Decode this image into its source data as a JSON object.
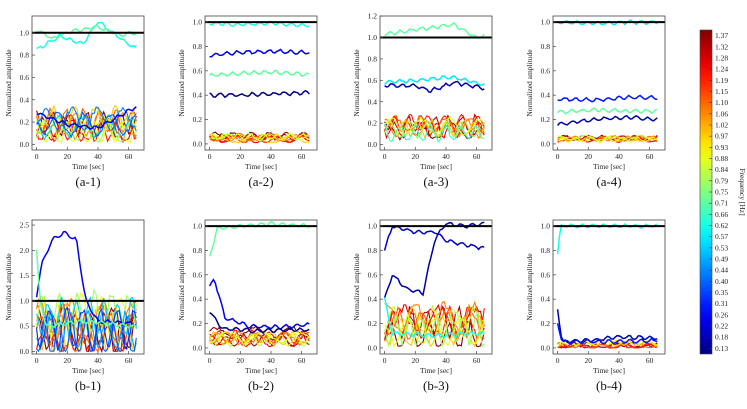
{
  "figure": {
    "colorbar": {
      "label": "Frequency [Hz]",
      "ticks": [
        "1.37",
        "1.32",
        "1.28",
        "1.24",
        "1.19",
        "1.15",
        "1.10",
        "1.06",
        "1.02",
        "0.97",
        "0.93",
        "0.88",
        "0.84",
        "0.79",
        "0.75",
        "0.71",
        "0.66",
        "0.62",
        "0.57",
        "0.53",
        "0.49",
        "0.44",
        "0.40",
        "0.35",
        "0.31",
        "0.26",
        "0.22",
        "0.18",
        "0.13"
      ]
    }
  },
  "chart_data": [
    {
      "id": "a-1",
      "caption": "(a-1)",
      "type": "line",
      "xlabel": "Time [sec]",
      "ylabel": "Normalized amplitude",
      "xlim": [
        -3,
        70
      ],
      "ylim": [
        -0.05,
        1.15
      ],
      "xticks": [
        "0",
        "20",
        "40",
        "60"
      ],
      "yticks": [
        "0.0",
        "0.2",
        "0.4",
        "0.6",
        "0.8",
        "1.0"
      ],
      "reference_line": 1.0,
      "series": [
        {
          "name": "0.62 Hz",
          "level": 0.62,
          "start": 0.85,
          "points": [
            [
              15,
              0.97
            ],
            [
              30,
              0.9
            ],
            [
              40,
              1.1
            ],
            [
              50,
              1.0
            ],
            [
              64,
              0.86
            ]
          ]
        },
        {
          "name": "0.71 Hz",
          "level": 0.71,
          "start": 1.03,
          "points": [
            [
              10,
              0.95
            ],
            [
              25,
              1.02
            ],
            [
              40,
              1.05
            ],
            [
              55,
              0.98
            ],
            [
              64,
              1.0
            ]
          ]
        },
        {
          "name": "0.26 Hz",
          "level": 0.26,
          "start": 0.28,
          "points": [
            [
              20,
              0.18
            ],
            [
              40,
              0.15
            ],
            [
              64,
              0.33
            ]
          ]
        }
      ],
      "cluster": {
        "band": [
          0.02,
          0.28
        ],
        "levels": [
          1.37,
          1.32,
          1.24,
          1.19,
          1.1,
          1.06,
          0.97,
          0.88,
          0.79,
          0.84,
          0.53,
          0.44,
          0.4
        ]
      }
    },
    {
      "id": "a-2",
      "caption": "(a-2)",
      "type": "line",
      "xlabel": "Time [sec]",
      "ylabel": "Normalized amplitude",
      "xlim": [
        -3,
        70
      ],
      "ylim": [
        -0.05,
        1.05
      ],
      "xticks": [
        "0",
        "20",
        "40",
        "60"
      ],
      "yticks": [
        "0.0",
        "0.2",
        "0.4",
        "0.6",
        "0.8",
        "1.0"
      ],
      "reference_line": 1.0,
      "series": [
        {
          "name": "0.62 Hz",
          "level": 0.62,
          "start": 0.99,
          "points": [
            [
              20,
              0.98
            ],
            [
              40,
              0.99
            ],
            [
              64,
              0.97
            ]
          ]
        },
        {
          "name": "0.26 Hz",
          "level": 0.26,
          "start": 0.73,
          "points": [
            [
              20,
              0.75
            ],
            [
              40,
              0.76
            ],
            [
              64,
              0.75
            ]
          ]
        },
        {
          "name": "0.71 Hz",
          "level": 0.71,
          "start": 0.56,
          "points": [
            [
              20,
              0.58
            ],
            [
              40,
              0.59
            ],
            [
              64,
              0.57
            ]
          ]
        },
        {
          "name": "0.13 Hz",
          "level": 0.13,
          "start": 0.4,
          "points": [
            [
              20,
              0.4
            ],
            [
              40,
              0.41
            ],
            [
              64,
              0.42
            ]
          ]
        }
      ],
      "cluster": {
        "band": [
          0.01,
          0.08
        ],
        "levels": [
          1.37,
          1.32,
          1.24,
          1.19,
          1.1,
          1.06,
          0.97,
          0.88,
          0.84
        ]
      }
    },
    {
      "id": "a-3",
      "caption": "(a-3)",
      "type": "line",
      "xlabel": "Time [sec]",
      "ylabel": "Normalized amplitude",
      "xlim": [
        -3,
        70
      ],
      "ylim": [
        -0.05,
        1.2
      ],
      "xticks": [
        "0",
        "20",
        "40",
        "60"
      ],
      "yticks": [
        "0.0",
        "0.2",
        "0.4",
        "0.6",
        "0.8",
        "1.0",
        "1.2"
      ],
      "reference_line": 1.0,
      "series": [
        {
          "name": "0.71 Hz",
          "level": 0.71,
          "start": 1.03,
          "points": [
            [
              20,
              1.07
            ],
            [
              45,
              1.12
            ],
            [
              60,
              1.0
            ],
            [
              64,
              1.02
            ]
          ]
        },
        {
          "name": "0.57 Hz",
          "level": 0.57,
          "start": 0.58,
          "points": [
            [
              20,
              0.6
            ],
            [
              45,
              0.63
            ],
            [
              64,
              0.56
            ]
          ]
        },
        {
          "name": "0.18 Hz",
          "level": 0.18,
          "start": 0.55,
          "points": [
            [
              20,
              0.55
            ],
            [
              30,
              0.5
            ],
            [
              45,
              0.58
            ],
            [
              64,
              0.53
            ]
          ]
        }
      ],
      "cluster": {
        "band": [
          0.03,
          0.23
        ],
        "levels": [
          1.37,
          1.32,
          1.24,
          1.19,
          1.1,
          1.06,
          0.97,
          0.88,
          0.79,
          0.66
        ]
      }
    },
    {
      "id": "a-4",
      "caption": "(a-4)",
      "type": "line",
      "xlabel": "Time [sec]",
      "ylabel": "Normalized amplitude",
      "xlim": [
        -3,
        70
      ],
      "ylim": [
        -0.05,
        1.05
      ],
      "xticks": [
        "0",
        "20",
        "40",
        "60"
      ],
      "yticks": [
        "0.0",
        "0.2",
        "0.4",
        "0.6",
        "0.8",
        "1.0"
      ],
      "reference_line": 1.0,
      "series": [
        {
          "name": "0.57 Hz",
          "level": 0.57,
          "start": 1.0,
          "points": [
            [
              25,
              0.99
            ],
            [
              45,
              1.0
            ],
            [
              64,
              1.0
            ]
          ]
        },
        {
          "name": "0.31 Hz",
          "level": 0.31,
          "start": 0.37,
          "points": [
            [
              25,
              0.36
            ],
            [
              45,
              0.38
            ],
            [
              64,
              0.38
            ]
          ]
        },
        {
          "name": "0.71 Hz",
          "level": 0.71,
          "start": 0.26,
          "points": [
            [
              25,
              0.28
            ],
            [
              45,
              0.27
            ],
            [
              64,
              0.27
            ]
          ]
        },
        {
          "name": "0.18 Hz",
          "level": 0.18,
          "start": 0.16,
          "points": [
            [
              25,
              0.2
            ],
            [
              45,
              0.22
            ],
            [
              64,
              0.2
            ]
          ]
        }
      ],
      "cluster": {
        "band": [
          0.01,
          0.06
        ],
        "levels": [
          1.37,
          1.32,
          1.24,
          1.15,
          1.06,
          0.97,
          0.88,
          0.84
        ]
      }
    },
    {
      "id": "b-1",
      "caption": "(b-1)",
      "type": "line",
      "xlabel": "Time [sec]",
      "ylabel": "Normalized amplitude",
      "xlim": [
        -3,
        70
      ],
      "ylim": [
        -0.05,
        2.6
      ],
      "xticks": [
        "0",
        "20",
        "40",
        "60"
      ],
      "yticks": [
        "0.0",
        "0.5",
        "1.0",
        "1.5",
        "2.0",
        "2.5"
      ],
      "reference_line": 1.0,
      "series": [
        {
          "name": "0.26 Hz",
          "level": 0.26,
          "start": 1.1,
          "points": [
            [
              3,
              1.7
            ],
            [
              10,
              2.2
            ],
            [
              18,
              2.35
            ],
            [
              26,
              2.2
            ],
            [
              32,
              1.0
            ],
            [
              40,
              0.6
            ],
            [
              64,
              0.55
            ]
          ]
        },
        {
          "name": "0.71 Hz",
          "level": 0.71,
          "start": 2.0,
          "points": [
            [
              2,
              1.1
            ],
            [
              6,
              0.5
            ],
            [
              30,
              0.6
            ],
            [
              64,
              0.5
            ]
          ]
        }
      ],
      "cluster": {
        "band": [
          0.0,
          1.0
        ],
        "levels": [
          1.37,
          1.32,
          1.24,
          1.19,
          1.1,
          1.06,
          0.97,
          0.88,
          0.79,
          0.53,
          0.49,
          0.4,
          0.35
        ]
      }
    },
    {
      "id": "b-2",
      "caption": "(b-2)",
      "type": "line",
      "xlabel": "Time [sec]",
      "ylabel": "Normalized amplitude",
      "xlim": [
        -3,
        70
      ],
      "ylim": [
        -0.05,
        1.05
      ],
      "xticks": [
        "0",
        "20",
        "40",
        "60"
      ],
      "yticks": [
        "0.0",
        "0.2",
        "0.4",
        "0.6",
        "0.8",
        "1.0"
      ],
      "reference_line": 1.0,
      "series": [
        {
          "name": "0.71 Hz",
          "level": 0.71,
          "start": 0.75,
          "points": [
            [
              5,
              0.98
            ],
            [
              20,
              1.0
            ],
            [
              40,
              1.02
            ],
            [
              64,
              1.0
            ]
          ]
        },
        {
          "name": "0.26 Hz",
          "level": 0.26,
          "start": 0.5,
          "points": [
            [
              3,
              0.57
            ],
            [
              10,
              0.25
            ],
            [
              25,
              0.18
            ],
            [
              45,
              0.17
            ],
            [
              64,
              0.19
            ]
          ]
        },
        {
          "name": "0.13 Hz",
          "level": 0.13,
          "start": 0.3,
          "points": [
            [
              8,
              0.16
            ],
            [
              30,
              0.14
            ],
            [
              64,
              0.15
            ]
          ]
        }
      ],
      "cluster": {
        "band": [
          0.01,
          0.14
        ],
        "levels": [
          1.37,
          1.32,
          1.24,
          1.19,
          1.1,
          1.06,
          0.97,
          0.88,
          0.84
        ]
      }
    },
    {
      "id": "b-3",
      "caption": "(b-3)",
      "type": "line",
      "xlabel": "Time [sec]",
      "ylabel": "Normalized amplitude",
      "xlim": [
        -3,
        70
      ],
      "ylim": [
        -0.05,
        1.05
      ],
      "xticks": [
        "0",
        "20",
        "40",
        "60"
      ],
      "yticks": [
        "0.0",
        "0.2",
        "0.4",
        "0.6",
        "0.8",
        "1.0"
      ],
      "reference_line": 1.0,
      "series": [
        {
          "name": "0.22 Hz",
          "level": 0.22,
          "start": 0.8,
          "points": [
            [
              5,
              1.0
            ],
            [
              20,
              0.95
            ],
            [
              33,
              0.95
            ],
            [
              40,
              0.88
            ],
            [
              64,
              0.82
            ]
          ]
        },
        {
          "name": "0.18 Hz",
          "level": 0.18,
          "start": 0.4,
          "points": [
            [
              5,
              0.6
            ],
            [
              15,
              0.48
            ],
            [
              25,
              0.45
            ],
            [
              33,
              0.9
            ],
            [
              40,
              1.02
            ],
            [
              55,
              1.0
            ],
            [
              64,
              1.02
            ]
          ]
        },
        {
          "name": "0.62 Hz",
          "level": 0.62,
          "start": 0.4,
          "points": [
            [
              5,
              0.12
            ],
            [
              30,
              0.1
            ],
            [
              64,
              0.12
            ]
          ]
        }
      ],
      "cluster": {
        "band": [
          0.01,
          0.32
        ],
        "levels": [
          1.37,
          1.32,
          1.24,
          1.19,
          1.1,
          1.06,
          0.97,
          0.88,
          0.84,
          0.79
        ]
      }
    },
    {
      "id": "b-4",
      "caption": "(b-4)",
      "type": "line",
      "xlabel": "Time [sec]",
      "ylabel": "Normalized amplitude",
      "xlim": [
        -3,
        70
      ],
      "ylim": [
        -0.05,
        1.05
      ],
      "xticks": [
        "0",
        "20",
        "40",
        "60"
      ],
      "yticks": [
        "0.0",
        "0.2",
        "0.4",
        "0.6",
        "0.8",
        "1.0"
      ],
      "reference_line": 1.0,
      "series": [
        {
          "name": "0.62 Hz",
          "level": 0.62,
          "start": 0.77,
          "points": [
            [
              2,
              1.0
            ],
            [
              20,
              1.0
            ],
            [
              64,
              1.0
            ]
          ]
        },
        {
          "name": "0.18 Hz",
          "level": 0.18,
          "start": 0.32,
          "points": [
            [
              3,
              0.05
            ],
            [
              20,
              0.06
            ],
            [
              40,
              0.09
            ],
            [
              64,
              0.08
            ]
          ]
        },
        {
          "name": "0.31 Hz",
          "level": 0.31,
          "start": 0.2,
          "points": [
            [
              3,
              0.05
            ],
            [
              30,
              0.05
            ],
            [
              64,
              0.06
            ]
          ]
        }
      ],
      "cluster": {
        "band": [
          0.0,
          0.05
        ],
        "levels": [
          1.37,
          1.32,
          1.24,
          1.19,
          1.1,
          0.97,
          0.88
        ]
      }
    }
  ]
}
